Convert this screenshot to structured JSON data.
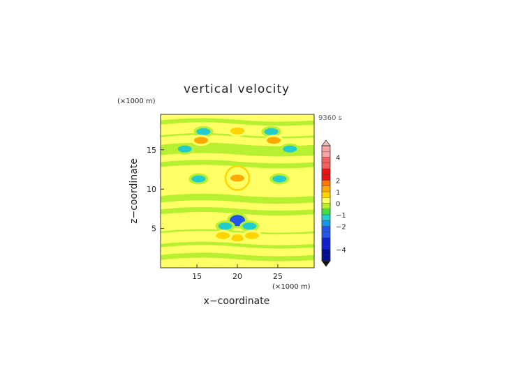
{
  "chart_data": {
    "type": "heatmap",
    "title": "vertical velocity",
    "time_label": "9360 s",
    "xlabel": "x−coordinate",
    "ylabel": "z−coordinate",
    "x_unit": "(×1000 m)",
    "y_unit": "(×1000 m)",
    "xlim": [
      10.5,
      29.5
    ],
    "ylim": [
      0,
      19.5
    ],
    "x_ticks": [
      15,
      20,
      25
    ],
    "y_ticks": [
      5,
      10,
      15
    ],
    "colorbar": {
      "range": [
        -5,
        5
      ],
      "tick_values": [
        4,
        2,
        1,
        0,
        -1,
        -2,
        -4
      ],
      "tick_labels": [
        "4",
        "2",
        "1",
        "0",
        "−1",
        "−2",
        "−4"
      ],
      "extend": "both",
      "levels": [
        {
          "min": 4,
          "max": 5,
          "color": "#f4a4a4"
        },
        {
          "min": 3,
          "max": 4,
          "color": "#f06060"
        },
        {
          "min": 2,
          "max": 3,
          "color": "#ee1111"
        },
        {
          "min": 1.5,
          "max": 2,
          "color": "#ff7700"
        },
        {
          "min": 1,
          "max": 1.5,
          "color": "#ffaa00"
        },
        {
          "min": 0.5,
          "max": 1,
          "color": "#ffd400"
        },
        {
          "min": 0,
          "max": 0.5,
          "color": "#ffff66"
        },
        {
          "min": -0.5,
          "max": 0,
          "color": "#b6f030"
        },
        {
          "min": -1,
          "max": -0.5,
          "color": "#44dd44"
        },
        {
          "min": -1.5,
          "max": -1,
          "color": "#22cccc"
        },
        {
          "min": -2,
          "max": -1.5,
          "color": "#1199ee"
        },
        {
          "min": -3,
          "max": -2,
          "color": "#2255ee"
        },
        {
          "min": -4,
          "max": -3,
          "color": "#1122cc"
        },
        {
          "min": -5,
          "max": -4,
          "color": "#001188"
        }
      ]
    },
    "features": [
      {
        "x": 20,
        "z": 6.0,
        "value": -2.5
      },
      {
        "x": 18.5,
        "z": 5.3,
        "value": -1.5
      },
      {
        "x": 21.5,
        "z": 5.3,
        "value": -1.5
      },
      {
        "x": 20,
        "z": 11.4,
        "value": 1.2
      },
      {
        "x": 15.2,
        "z": 11.3,
        "value": -1.3
      },
      {
        "x": 25.2,
        "z": 11.3,
        "value": -1.3
      },
      {
        "x": 13.5,
        "z": 15.1,
        "value": -1.2
      },
      {
        "x": 26.5,
        "z": 15.1,
        "value": -1.2
      },
      {
        "x": 15.8,
        "z": 17.3,
        "value": -1.2
      },
      {
        "x": 24.2,
        "z": 17.3,
        "value": -1.2
      },
      {
        "x": 15.5,
        "z": 16.2,
        "value": 1.0
      },
      {
        "x": 24.5,
        "z": 16.2,
        "value": 1.0
      },
      {
        "x": 20,
        "z": 17.4,
        "value": 0.8
      },
      {
        "x": 20,
        "z": 3.8,
        "value": 0.9
      },
      {
        "x": 18.2,
        "z": 4.1,
        "value": 0.8
      },
      {
        "x": 21.8,
        "z": 4.1,
        "value": 0.8
      }
    ]
  }
}
